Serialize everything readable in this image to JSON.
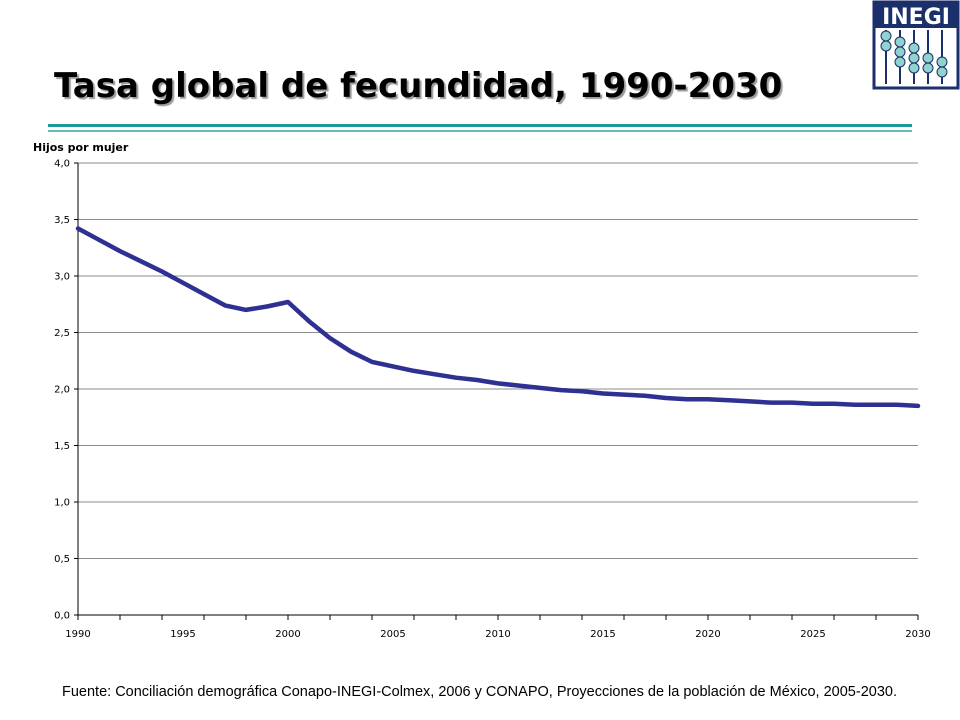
{
  "slide": {
    "title": "Tasa global de fecundidad, 1990-2030",
    "source": "Fuente: Conciliación demográfica Conapo-INEGI-Colmex, 2006 y CONAPO, Proyecciones de la población de México, 2005-2030."
  },
  "logo": {
    "text": "INEGI",
    "icon": "inegi-logo-icon",
    "color": "#1b2f6b"
  },
  "colors": {
    "accent_rule": "#1e9a9a",
    "series_line": "#2e3192",
    "grid": "#8c8c8c"
  },
  "chart_data": {
    "type": "line",
    "title": "",
    "ylabel": "Hijos por mujer",
    "xlabel": "",
    "ylim": [
      0,
      4
    ],
    "xlim": [
      1990,
      2030
    ],
    "y_ticks": [
      "0,0",
      "0,5",
      "1,0",
      "1,5",
      "2,0",
      "2,5",
      "3,0",
      "3,5",
      "4,0"
    ],
    "x_ticks": [
      "1990",
      "1995",
      "2000",
      "2005",
      "2010",
      "2015",
      "2020",
      "2025",
      "2030"
    ],
    "grid": "horizontal",
    "legend": "none",
    "series": [
      {
        "x": [
          1990,
          1991,
          1992,
          1993,
          1994,
          1995,
          1996,
          1997,
          1998,
          1999,
          2000,
          2001,
          2002,
          2003,
          2004,
          2005,
          2006,
          2007,
          2008,
          2009,
          2010,
          2011,
          2012,
          2013,
          2014,
          2015,
          2016,
          2017,
          2018,
          2019,
          2020,
          2021,
          2022,
          2023,
          2024,
          2025,
          2026,
          2027,
          2028,
          2029,
          2030
        ],
        "values": [
          3.42,
          3.32,
          3.22,
          3.13,
          3.04,
          2.94,
          2.84,
          2.74,
          2.7,
          2.73,
          2.77,
          2.6,
          2.45,
          2.33,
          2.24,
          2.2,
          2.16,
          2.13,
          2.1,
          2.08,
          2.05,
          2.03,
          2.01,
          1.99,
          1.98,
          1.96,
          1.95,
          1.94,
          1.92,
          1.91,
          1.91,
          1.9,
          1.89,
          1.88,
          1.88,
          1.87,
          1.87,
          1.86,
          1.86,
          1.86,
          1.85
        ]
      }
    ]
  }
}
